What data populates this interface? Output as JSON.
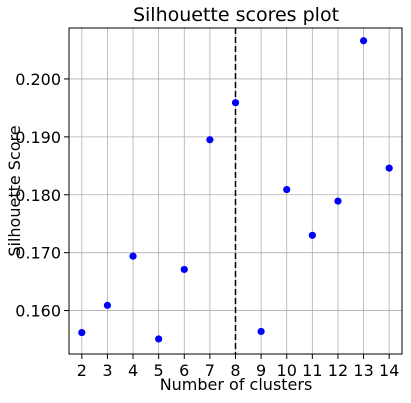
{
  "chart_data": {
    "type": "scatter",
    "title": "Silhouette scores plot",
    "xlabel": "Number of clusters",
    "ylabel": "Silhouette Score",
    "xlim": [
      1.5,
      14.5
    ],
    "ylim": [
      0.1525,
      0.2088
    ],
    "xticks": [
      2,
      3,
      4,
      5,
      6,
      7,
      8,
      9,
      10,
      11,
      12,
      13,
      14
    ],
    "xtick_labels": [
      "2",
      "3",
      "4",
      "5",
      "6",
      "7",
      "8",
      "9",
      "10",
      "11",
      "12",
      "13",
      "14"
    ],
    "yticks": [
      0.16,
      0.17,
      0.18,
      0.19,
      0.2
    ],
    "ytick_labels": [
      "0.160",
      "0.170",
      "0.180",
      "0.190",
      "0.200"
    ],
    "grid": true,
    "series": [
      {
        "color": "#0000ff",
        "x": [
          2,
          3,
          4,
          5,
          6,
          7,
          8,
          9,
          10,
          11,
          12,
          13,
          14
        ],
        "y": [
          0.1562,
          0.1609,
          0.1694,
          0.1551,
          0.1671,
          0.1895,
          0.1959,
          0.1564,
          0.1809,
          0.173,
          0.1789,
          0.2066,
          0.1846
        ]
      }
    ],
    "vline": {
      "x": 8,
      "style": "dashed",
      "color": "#000000"
    }
  }
}
